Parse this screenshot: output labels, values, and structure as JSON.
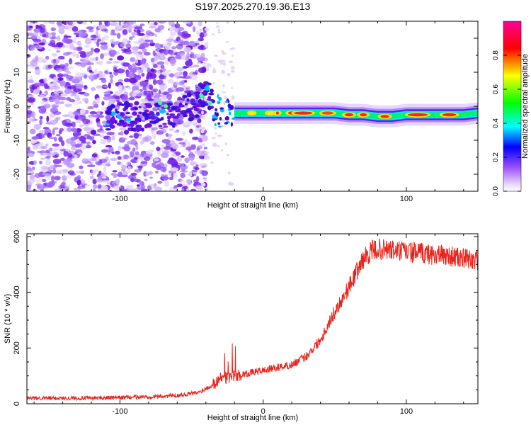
{
  "title": "S197.2025.270.19.36.E13",
  "chart_data": [
    {
      "type": "heatmap",
      "name": "spectrogram",
      "xlabel": "Height of straight line (km)",
      "ylabel": "Frequency (Hz)",
      "xlim": [
        -165,
        150
      ],
      "ylim": [
        -25,
        25
      ],
      "x_ticks": [
        "-100",
        "0",
        "100"
      ],
      "x_tick_values": [
        -100,
        0,
        100
      ],
      "y_ticks": [
        "-20",
        "-10",
        "0",
        "10",
        "20"
      ],
      "y_tick_values": [
        -20,
        -10,
        0,
        10,
        20
      ],
      "ridge": {
        "x": [
          -20,
          -10,
          0,
          10,
          20,
          30,
          40,
          50,
          60,
          70,
          80,
          90,
          100,
          110,
          120,
          130,
          140,
          150
        ],
        "frequency": [
          -2,
          -2,
          -2,
          -2,
          -2,
          -2,
          -2,
          -2,
          -2.5,
          -2.5,
          -3,
          -3,
          -2.5,
          -2.5,
          -2.5,
          -2.5,
          -2.5,
          -2
        ]
      },
      "colorbar": {
        "label": "Normalized spectral amplitude",
        "ticks": [
          "0.0",
          "0.2",
          "0.4",
          "0.6",
          "0.8"
        ],
        "tick_values": [
          0.0,
          0.2,
          0.4,
          0.6,
          0.8
        ],
        "range": [
          0,
          1
        ],
        "colors": [
          "#ffffff",
          "#a060ff",
          "#0000ff",
          "#00ffff",
          "#00ff00",
          "#ffff00",
          "#ff0000",
          "#ff00a0"
        ]
      }
    },
    {
      "type": "line",
      "name": "snr",
      "xlabel": "Height of straight line (km)",
      "ylabel": "SNR (10 * v/v)",
      "xlim": [
        -165,
        150
      ],
      "ylim": [
        0,
        610
      ],
      "x_ticks": [
        "-100",
        "0",
        "100"
      ],
      "x_tick_values": [
        -100,
        0,
        100
      ],
      "y_ticks": [
        "0",
        "200",
        "400",
        "600"
      ],
      "y_tick_values": [
        0,
        200,
        400,
        600
      ],
      "color": "#e8241c",
      "series": [
        {
          "name": "SNR",
          "x": [
            -165,
            -140,
            -120,
            -100,
            -80,
            -60,
            -45,
            -35,
            -30,
            -25,
            -20,
            -10,
            0,
            10,
            20,
            30,
            40,
            50,
            60,
            70,
            75,
            80,
            90,
            100,
            110,
            120,
            130,
            140,
            150
          ],
          "y": [
            20,
            20,
            20,
            22,
            25,
            30,
            40,
            70,
            90,
            95,
            100,
            110,
            120,
            130,
            140,
            170,
            230,
            330,
            420,
            520,
            545,
            555,
            550,
            545,
            540,
            535,
            530,
            520,
            515
          ]
        }
      ]
    }
  ]
}
